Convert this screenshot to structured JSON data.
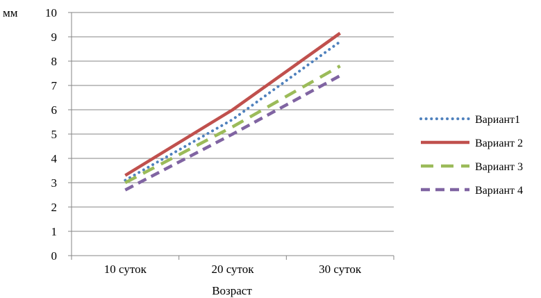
{
  "chart_data": {
    "type": "line",
    "ylabel": "мм",
    "xlabel": "Возраст",
    "categories": [
      "10 суток",
      "20 суток",
      "30 суток"
    ],
    "ylim": [
      0,
      10
    ],
    "yticks": [
      "0",
      "1",
      "2",
      "3",
      "4",
      "5",
      "6",
      "7",
      "8",
      "9",
      "10"
    ],
    "grid": true,
    "legend_position": "right",
    "series": [
      {
        "name": "Вариант1",
        "values": [
          3.1,
          5.6,
          8.8
        ],
        "color": "#4F81BD",
        "style": "dotted"
      },
      {
        "name": "Вариант 2",
        "values": [
          3.3,
          6.0,
          9.15
        ],
        "color": "#C0504D",
        "style": "solid"
      },
      {
        "name": "Вариант 3",
        "values": [
          3.0,
          5.3,
          7.8
        ],
        "color": "#9BBB59",
        "style": "long-dash"
      },
      {
        "name": "Вариант 4",
        "values": [
          2.7,
          5.0,
          7.4
        ],
        "color": "#8064A2",
        "style": "dash"
      }
    ]
  }
}
